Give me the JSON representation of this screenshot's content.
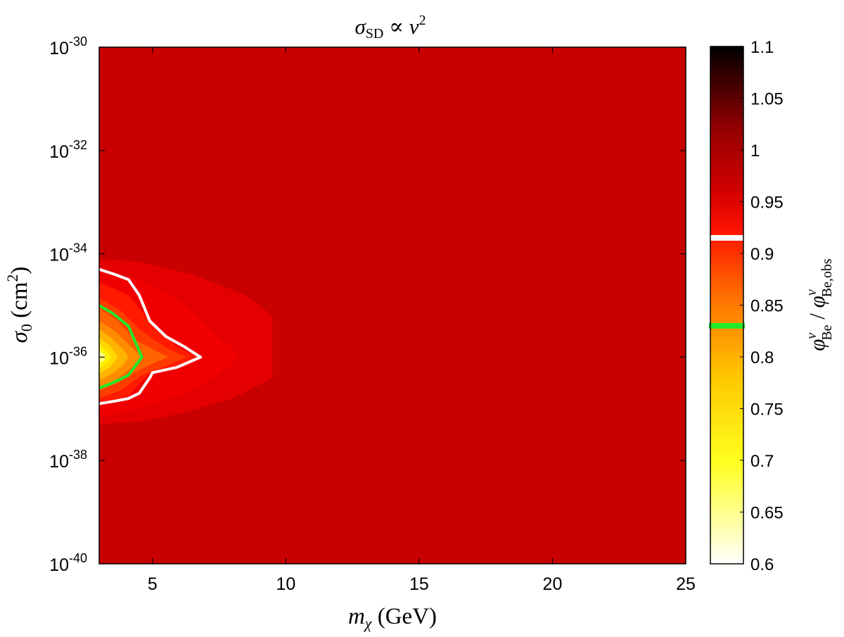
{
  "chart_data": {
    "type": "heatmap",
    "title_parts": [
      "σ",
      "SD",
      " ∝ ",
      "v",
      "2"
    ],
    "xlabel_parts": [
      "m",
      "χ",
      " (GeV)"
    ],
    "ylabel_parts": [
      "σ",
      "0",
      " (cm",
      "2",
      ")"
    ],
    "colorbar_label_parts": [
      "φ",
      "ν",
      "Be",
      " / ",
      "φ",
      "ν",
      "Be,obs"
    ],
    "xlim": [
      3,
      25
    ],
    "ylim_exponent": [
      -40,
      -30
    ],
    "x_ticks": [
      5,
      10,
      15,
      20,
      25
    ],
    "x_tick_labels": [
      "5",
      "10",
      "15",
      "20",
      "25"
    ],
    "y_ticks_exponent": [
      -30,
      -32,
      -34,
      -36,
      -38,
      -40
    ],
    "y_tick_base": "10",
    "y_tick_exponents": [
      "-30",
      "-32",
      "-34",
      "-36",
      "-38",
      "-40"
    ],
    "colorbar_range": [
      0.6,
      1.1
    ],
    "colorbar_ticks": [
      0.6,
      0.65,
      0.7,
      0.75,
      0.8,
      0.85,
      0.9,
      0.95,
      1,
      1.05,
      1.1
    ],
    "colorbar_tick_labels": [
      "0.6",
      "0.65",
      "0.7",
      "0.75",
      "0.8",
      "0.85",
      "0.9",
      "0.95",
      "1",
      "1.05",
      "1.1"
    ],
    "colormap": "hot",
    "background_value": 0.955,
    "background_color": "#c80000",
    "contour_levels": [
      {
        "value": 0.83,
        "color": "#22e82a"
      },
      {
        "value": 0.915,
        "color": "#ffffff"
      }
    ],
    "filled_regions": [
      {
        "value": 0.94,
        "color": "#e40000",
        "points": [
          [
            3,
            -34.1
          ],
          [
            4.5,
            -34.15
          ],
          [
            6.5,
            -34.4
          ],
          [
            8.5,
            -34.8
          ],
          [
            9.5,
            -35.2
          ],
          [
            9.5,
            -36.4
          ],
          [
            8,
            -36.8
          ],
          [
            6,
            -37.1
          ],
          [
            4.5,
            -37.25
          ],
          [
            3,
            -37.3
          ]
        ]
      },
      {
        "value": 0.93,
        "color": "#f00000",
        "points": [
          [
            3,
            -34.3
          ],
          [
            4.5,
            -34.5
          ],
          [
            6,
            -34.9
          ],
          [
            7.3,
            -35.5
          ],
          [
            8.3,
            -36.0
          ],
          [
            7.3,
            -36.4
          ],
          [
            6,
            -36.75
          ],
          [
            4.5,
            -37.0
          ],
          [
            3,
            -37.15
          ]
        ]
      },
      {
        "value": 0.915,
        "color": "#ff1a00",
        "points": [
          [
            3,
            -34.55
          ],
          [
            4.1,
            -34.8
          ],
          [
            4.9,
            -35.3
          ],
          [
            5.9,
            -35.8
          ],
          [
            6.8,
            -36.0
          ],
          [
            5.9,
            -36.2
          ],
          [
            4.9,
            -36.3
          ],
          [
            4.1,
            -36.75
          ],
          [
            3,
            -36.95
          ]
        ]
      },
      {
        "value": 0.89,
        "color": "#ff3c00",
        "points": [
          [
            3,
            -34.85
          ],
          [
            3.8,
            -35.1
          ],
          [
            4.6,
            -35.5
          ],
          [
            5.6,
            -35.85
          ],
          [
            6.3,
            -36.0
          ],
          [
            5.6,
            -36.15
          ],
          [
            4.6,
            -36.35
          ],
          [
            3.8,
            -36.65
          ],
          [
            3,
            -36.8
          ]
        ]
      },
      {
        "value": 0.86,
        "color": "#ff6400",
        "points": [
          [
            3,
            -35.05
          ],
          [
            3.7,
            -35.3
          ],
          [
            4.3,
            -35.65
          ],
          [
            5.2,
            -35.9
          ],
          [
            5.6,
            -36.0
          ],
          [
            5.1,
            -36.1
          ],
          [
            4.3,
            -36.3
          ],
          [
            3.7,
            -36.5
          ],
          [
            3,
            -36.65
          ]
        ]
      },
      {
        "value": 0.83,
        "color": "#ff8c00",
        "points": [
          [
            3,
            -35.3
          ],
          [
            3.6,
            -35.5
          ],
          [
            4.1,
            -35.75
          ],
          [
            4.6,
            -36.0
          ],
          [
            4.1,
            -36.25
          ],
          [
            3.6,
            -36.45
          ],
          [
            3,
            -36.6
          ]
        ]
      },
      {
        "value": 0.79,
        "color": "#ffb400",
        "points": [
          [
            3,
            -35.45
          ],
          [
            3.5,
            -35.65
          ],
          [
            3.9,
            -35.85
          ],
          [
            4.1,
            -36.0
          ],
          [
            3.9,
            -36.15
          ],
          [
            3.5,
            -36.32
          ],
          [
            3,
            -36.45
          ]
        ]
      },
      {
        "value": 0.74,
        "color": "#ffd800",
        "points": [
          [
            3,
            -35.62
          ],
          [
            3.4,
            -35.78
          ],
          [
            3.7,
            -36.0
          ],
          [
            3.4,
            -36.2
          ],
          [
            3,
            -36.32
          ]
        ]
      },
      {
        "value": 0.7,
        "color": "#fff000",
        "points": [
          [
            3,
            -35.75
          ],
          [
            3.3,
            -35.88
          ],
          [
            3.45,
            -36.0
          ],
          [
            3.3,
            -36.12
          ],
          [
            3,
            -36.22
          ]
        ]
      },
      {
        "value": 0.66,
        "color": "#ffff80",
        "points": [
          [
            3,
            -35.86
          ],
          [
            3.18,
            -35.94
          ],
          [
            3.25,
            -36.0
          ],
          [
            3.18,
            -36.07
          ],
          [
            3,
            -36.12
          ]
        ]
      }
    ],
    "contour_white_points": [
      [
        3,
        -34.3
      ],
      [
        3.6,
        -34.4
      ],
      [
        4.1,
        -34.5
      ],
      [
        4.5,
        -34.8
      ],
      [
        4.9,
        -35.3
      ],
      [
        5.5,
        -35.6
      ],
      [
        6.2,
        -35.8
      ],
      [
        6.8,
        -36.0
      ],
      [
        5.9,
        -36.2
      ],
      [
        5.0,
        -36.3
      ],
      [
        4.9,
        -36.4
      ],
      [
        4.5,
        -36.7
      ],
      [
        4.1,
        -36.8
      ],
      [
        3.6,
        -36.85
      ],
      [
        3,
        -36.9
      ]
    ],
    "contour_green_points": [
      [
        3,
        -35.0
      ],
      [
        3.5,
        -35.15
      ],
      [
        4.1,
        -35.4
      ],
      [
        4.6,
        -36.0
      ],
      [
        4.1,
        -36.35
      ],
      [
        3.5,
        -36.5
      ],
      [
        3,
        -36.6
      ]
    ],
    "grid": false,
    "box": true
  }
}
